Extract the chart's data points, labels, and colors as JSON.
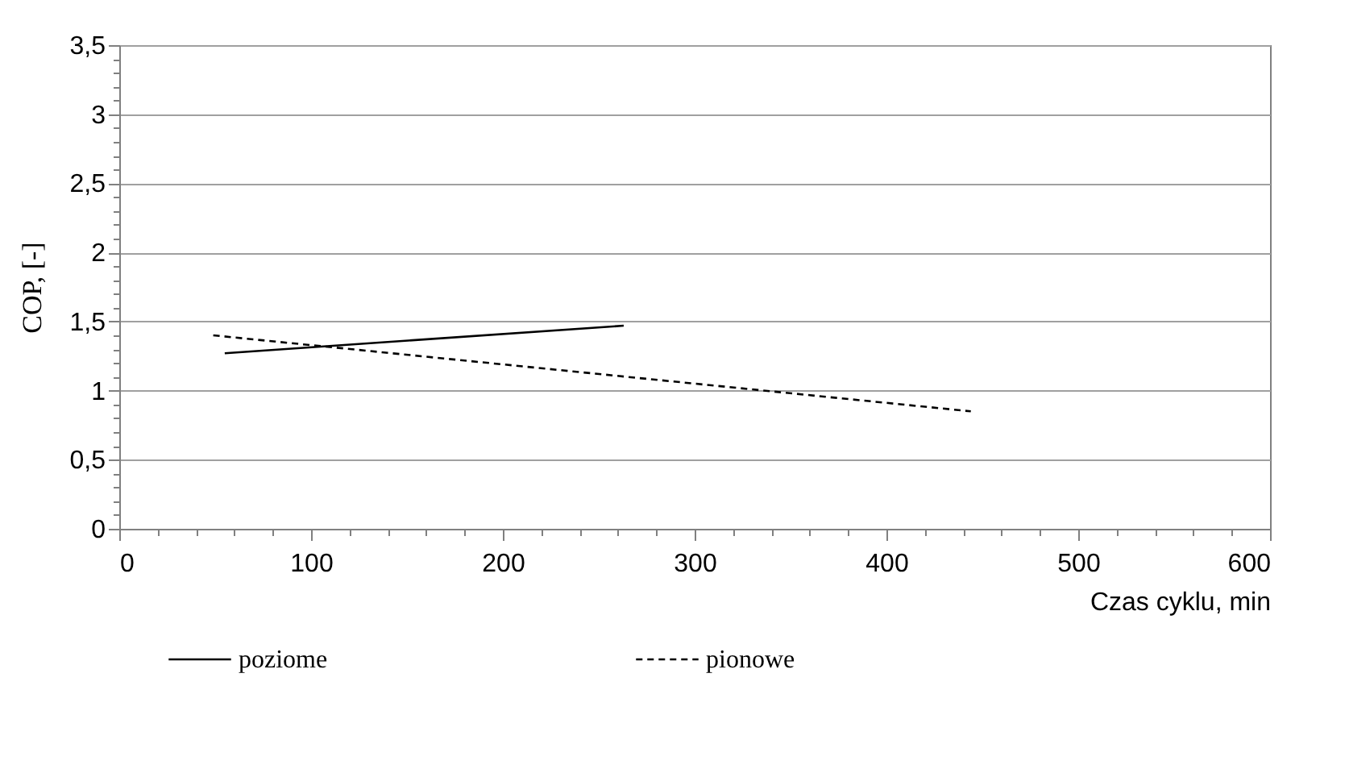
{
  "chart_data": {
    "type": "line",
    "xlabel": "Czas cyklu, min",
    "ylabel": "COP, [-]",
    "xlim": [
      0,
      600
    ],
    "ylim": [
      0,
      3.5
    ],
    "xticks": [
      0,
      {
        "value": 20,
        "label": null
      },
      {
        "value": 40,
        "label": null
      },
      {
        "value": 60,
        "label": null
      },
      {
        "value": 80,
        "label": null
      },
      100,
      {
        "value": 120,
        "label": null
      },
      {
        "value": 140,
        "label": null
      },
      {
        "value": 160,
        "label": null
      },
      {
        "value": 180,
        "label": null
      },
      200,
      {
        "value": 220,
        "label": null
      },
      {
        "value": 240,
        "label": null
      },
      {
        "value": 260,
        "label": null
      },
      {
        "value": 280,
        "label": null
      },
      300,
      {
        "value": 320,
        "label": null
      },
      {
        "value": 340,
        "label": null
      },
      {
        "value": 360,
        "label": null
      },
      {
        "value": 380,
        "label": null
      },
      400,
      {
        "value": 420,
        "label": null
      },
      {
        "value": 440,
        "label": null
      },
      {
        "value": 460,
        "label": null
      },
      {
        "value": 480,
        "label": null
      },
      500,
      {
        "value": 520,
        "label": null
      },
      {
        "value": 540,
        "label": null
      },
      {
        "value": 560,
        "label": null
      },
      {
        "value": 580,
        "label": null
      },
      600
    ],
    "yticks": [
      0,
      {
        "value": 0.1,
        "label": null
      },
      {
        "value": 0.2,
        "label": null
      },
      {
        "value": 0.3,
        "label": null
      },
      {
        "value": 0.4,
        "label": null
      },
      {
        "value": 0.5,
        "label": "0,5"
      },
      {
        "value": 0.6,
        "label": null
      },
      {
        "value": 0.7,
        "label": null
      },
      {
        "value": 0.8,
        "label": null
      },
      {
        "value": 0.9,
        "label": null
      },
      1,
      {
        "value": 1.1,
        "label": null
      },
      {
        "value": 1.2,
        "label": null
      },
      {
        "value": 1.3,
        "label": null
      },
      {
        "value": 1.4,
        "label": null
      },
      {
        "value": 1.5,
        "label": "1,5"
      },
      {
        "value": 1.6,
        "label": null
      },
      {
        "value": 1.7,
        "label": null
      },
      {
        "value": 1.8,
        "label": null
      },
      {
        "value": 1.9,
        "label": null
      },
      2,
      {
        "value": 2.1,
        "label": null
      },
      {
        "value": 2.2,
        "label": null
      },
      {
        "value": 2.3,
        "label": null
      },
      {
        "value": 2.4,
        "label": null
      },
      {
        "value": 2.5,
        "label": "2,5"
      },
      {
        "value": 2.6,
        "label": null
      },
      {
        "value": 2.7,
        "label": null
      },
      {
        "value": 2.8,
        "label": null
      },
      {
        "value": 2.9,
        "label": null
      },
      3,
      {
        "value": 3.1,
        "label": null
      },
      {
        "value": 3.2,
        "label": null
      },
      {
        "value": 3.3,
        "label": null
      },
      {
        "value": 3.4,
        "label": null
      },
      {
        "value": 3.5,
        "label": "3,5"
      }
    ],
    "grid": "y",
    "legend": "bottom",
    "marker": "none",
    "series": [
      {
        "name": "poziome",
        "color": "#000000",
        "line_style": "solid",
        "x": [
          55,
          263
        ],
        "values": [
          1.27,
          1.47
        ]
      },
      {
        "name": "pionowe",
        "color": "#000000",
        "line_style": "dashed",
        "x": [
          49,
          444
        ],
        "values": [
          1.4,
          0.85
        ]
      }
    ]
  }
}
